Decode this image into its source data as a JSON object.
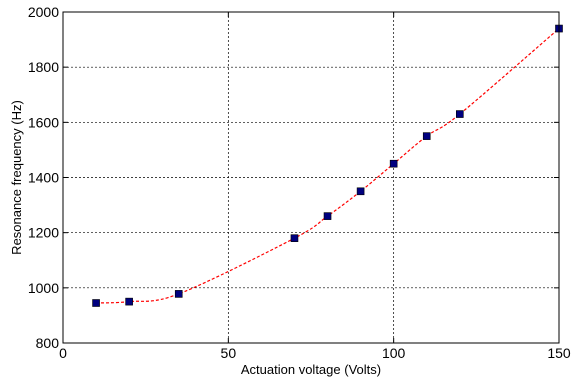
{
  "chart_data": {
    "type": "line",
    "xlabel": "Actuation voltage (Volts)",
    "ylabel": "Resonance frequency (Hz)",
    "xlim": [
      0,
      150
    ],
    "ylim": [
      800,
      2000
    ],
    "x_ticks": [
      0,
      50,
      100,
      150
    ],
    "y_ticks": [
      800,
      1000,
      1200,
      1400,
      1600,
      1800,
      2000
    ],
    "grid": true,
    "line_style": "dashed",
    "line_color": "#ff0000",
    "marker": "square",
    "marker_color": "#00007f",
    "series": [
      {
        "x": [
          10,
          20,
          35,
          70,
          80,
          90,
          100,
          110,
          120,
          150
        ],
        "y": [
          945,
          950,
          978,
          1180,
          1260,
          1350,
          1450,
          1550,
          1630,
          1940
        ]
      }
    ]
  }
}
